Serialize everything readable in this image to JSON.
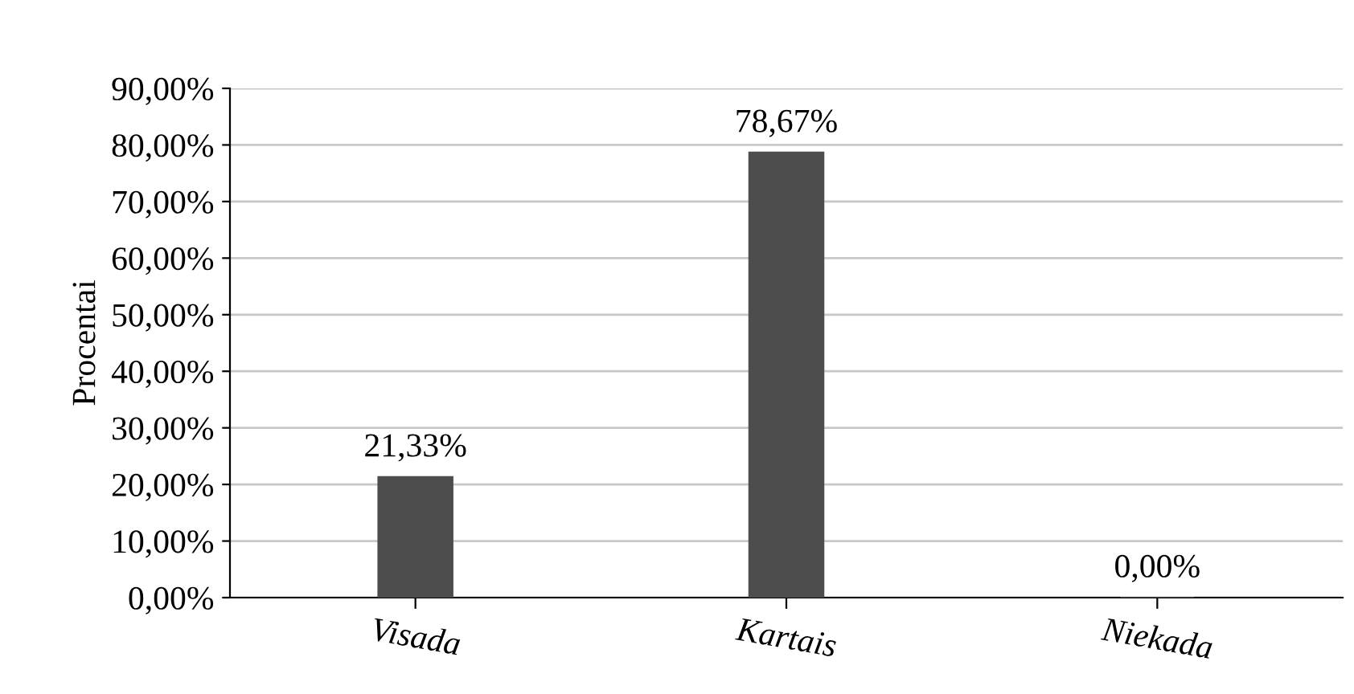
{
  "chart_data": {
    "type": "bar",
    "ylabel": "Procentai",
    "categories": [
      "Visada",
      "Kartais",
      "Niekada"
    ],
    "values": [
      21.33,
      78.67,
      0
    ],
    "value_labels": [
      "21,33%",
      "78,67%",
      "0,00%"
    ],
    "color": "#4d4d4d",
    "ylim": [
      0,
      90
    ],
    "yticks": [
      {
        "value": 0,
        "label": "0,00%"
      },
      {
        "value": 10,
        "label": "10,00%"
      },
      {
        "value": 20,
        "label": "20,00%"
      },
      {
        "value": 30,
        "label": "30,00%"
      },
      {
        "value": 40,
        "label": "40,00%"
      },
      {
        "value": 50,
        "label": "50,00%"
      },
      {
        "value": 60,
        "label": "60,00%"
      },
      {
        "value": 70,
        "label": "70,00%"
      },
      {
        "value": 80,
        "label": "80,00%"
      },
      {
        "value": 90,
        "label": "90,00%"
      }
    ],
    "grid": "y"
  }
}
